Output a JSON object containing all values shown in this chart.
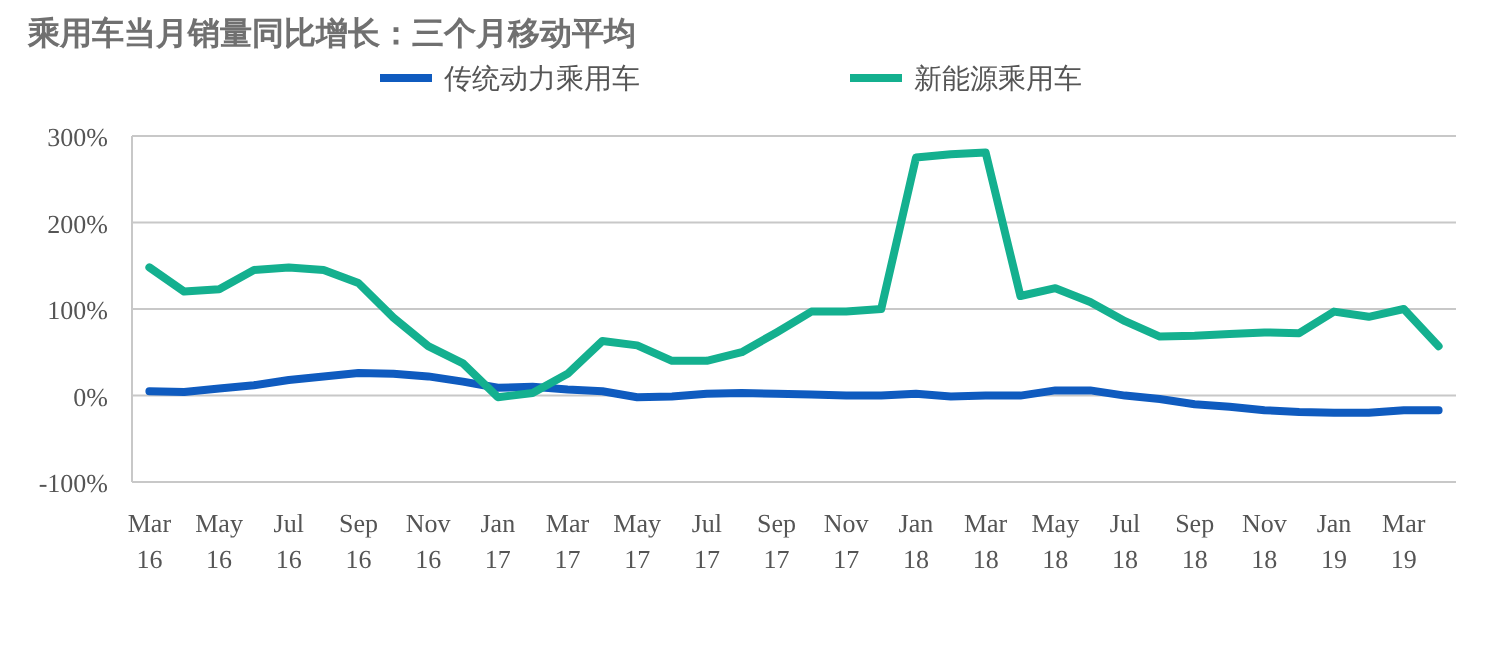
{
  "chart_data": {
    "type": "line",
    "title": "乘用车当月销量同比增长：三个月移动平均",
    "categories": [
      "Mar 16",
      null,
      "May 16",
      null,
      "Jul 16",
      null,
      "Sep 16",
      null,
      "Nov 16",
      null,
      "Jan 17",
      null,
      "Mar 17",
      null,
      "May 17",
      null,
      "Jul 17",
      null,
      "Sep 17",
      null,
      "Nov 17",
      null,
      "Jan 18",
      null,
      "Mar 18",
      null,
      "May 18",
      null,
      "Jul 18",
      null,
      "Sep 18",
      null,
      "Nov 18",
      null,
      "Jan 19",
      null,
      "Mar 19",
      null
    ],
    "series": [
      {
        "name": "传统动力乘用车",
        "color": "#0f5bbf",
        "values": [
          5,
          4,
          8,
          12,
          18,
          22,
          26,
          25,
          22,
          16,
          9,
          10,
          7,
          5,
          -2,
          -1,
          2,
          3,
          2,
          1,
          0,
          0,
          2,
          -1,
          0,
          0,
          6,
          6,
          0,
          -4,
          -10,
          -13,
          -17,
          -19,
          -20,
          -20,
          -17,
          -17
        ]
      },
      {
        "name": "新能源乘用车",
        "color": "#14b08f",
        "values": [
          148,
          120,
          123,
          145,
          148,
          145,
          130,
          90,
          57,
          37,
          -2,
          3,
          25,
          63,
          58,
          40,
          40,
          50,
          73,
          97,
          97,
          100,
          275,
          279,
          281,
          115,
          124,
          108,
          86,
          68,
          69,
          71,
          73,
          72,
          97,
          91,
          100,
          57
        ]
      }
    ],
    "ylim": [
      -100,
      300
    ],
    "yticks": [
      {
        "value": -100,
        "label": "-100%"
      },
      {
        "value": 0,
        "label": "0%"
      },
      {
        "value": 100,
        "label": "100%"
      },
      {
        "value": 200,
        "label": "200%"
      },
      {
        "value": 300,
        "label": "300%"
      }
    ],
    "grid": "y",
    "legend": "top",
    "line_style": "solid",
    "marker": "none"
  }
}
